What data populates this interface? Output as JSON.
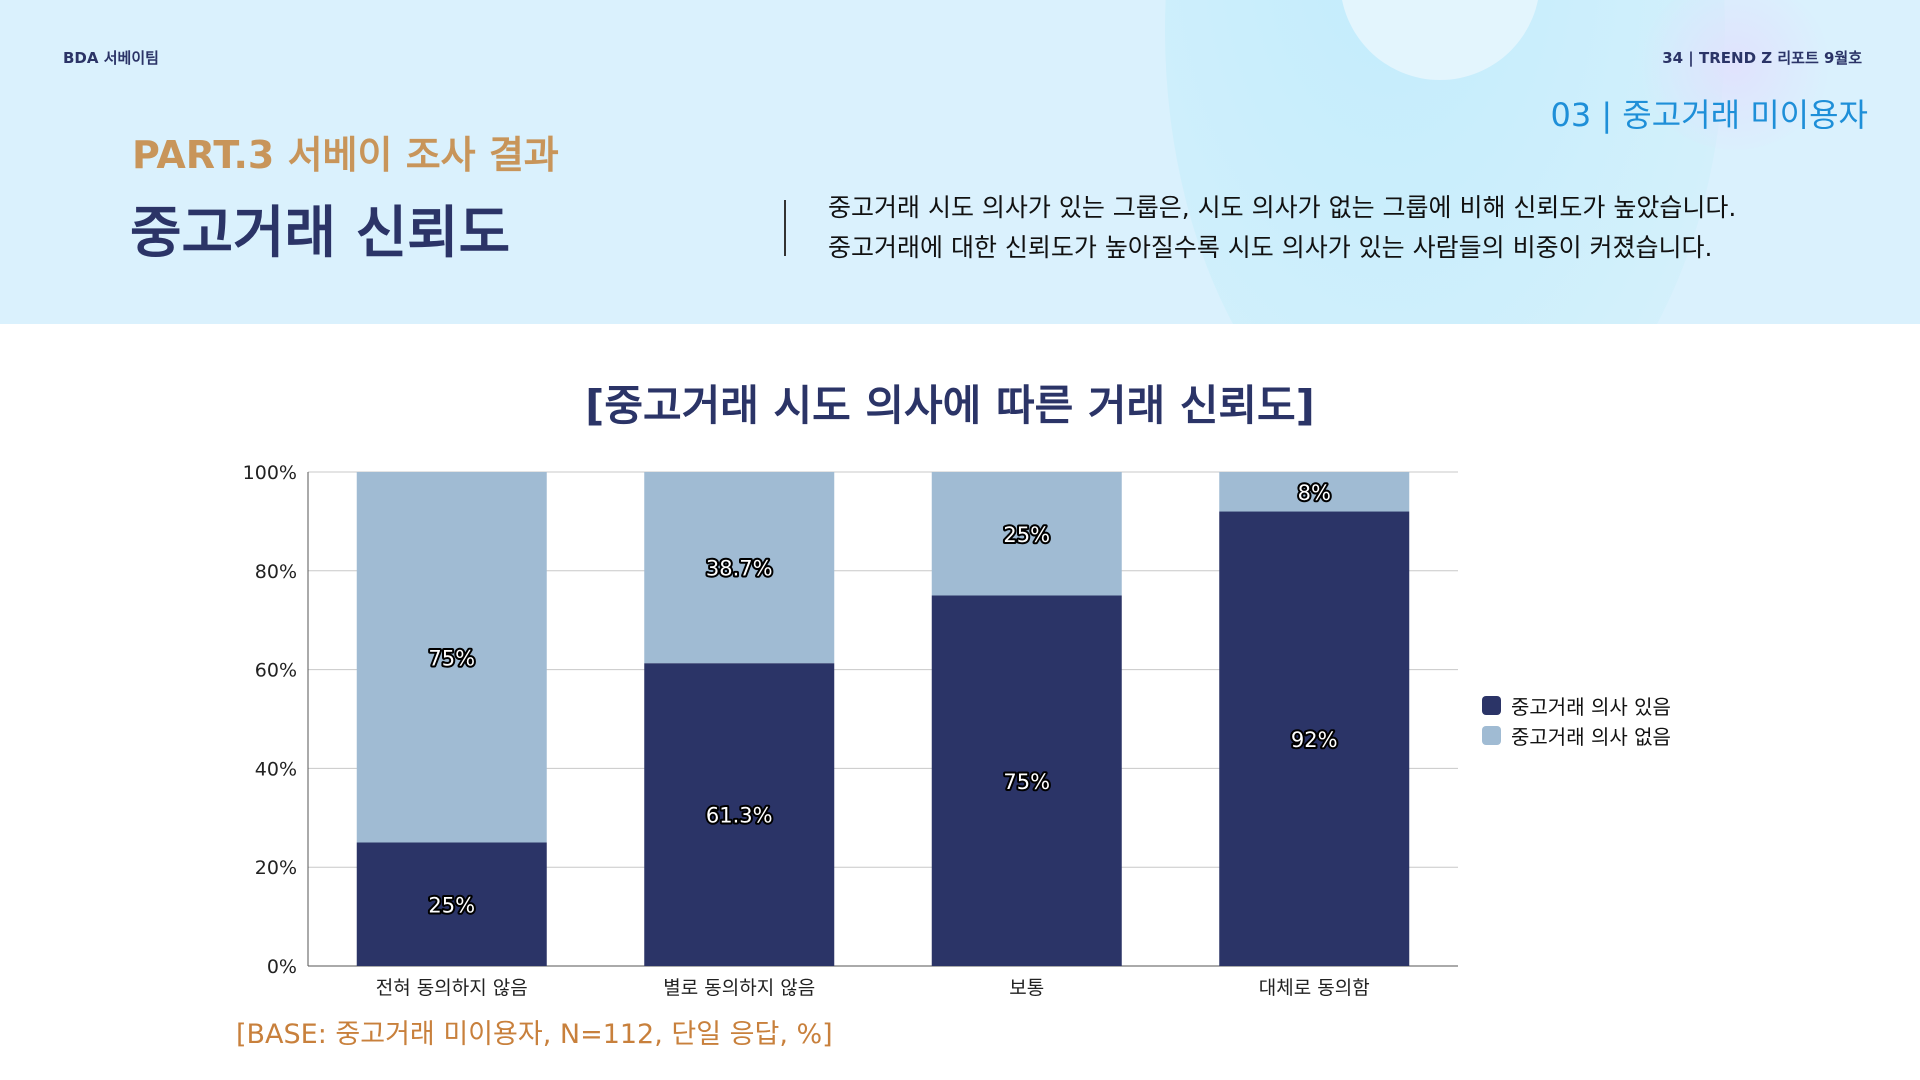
{
  "header": {
    "team": "BDA 서베이팀",
    "issue": "34 | TREND Z 리포트 9월호",
    "section": "03 | 중고거래 미이용자",
    "part": "PART.3 서베이 조사 결과",
    "title": "중고거래 신뢰도",
    "desc": [
      "중고거래 시도 의사가 있는 그룹은, 시도 의사가 없는 그룹에 비해 신뢰도가 높았습니다.",
      "중고거래에 대한 신뢰도가 높아질수록 시도 의사가 있는 사람들의 비중이 커졌습니다."
    ]
  },
  "chart_data": {
    "type": "bar",
    "stacked": true,
    "title": "[중고거래 시도 의사에 따른 거래 신뢰도]",
    "categories": [
      "전혀 동의하지 않음",
      "별로 동의하지 않음",
      "보통",
      "대체로 동의함"
    ],
    "series": [
      {
        "name": "중고거래 의사 있음",
        "values": [
          25,
          61.3,
          75,
          92
        ],
        "labels": [
          "25%",
          "61.3%",
          "75%",
          "92%"
        ],
        "color": "#2b3467"
      },
      {
        "name": "중고거래 의사 없음",
        "values": [
          75,
          38.7,
          25,
          8
        ],
        "labels": [
          "75%",
          "38.7%",
          "25%",
          "8%"
        ],
        "color": "#a0bbd3"
      }
    ],
    "ylim": [
      0,
      100
    ],
    "yticks": [
      "0%",
      "20%",
      "40%",
      "60%",
      "80%",
      "100%"
    ],
    "grid": true,
    "legend": "right",
    "note": "[BASE: 중고거래 미이용자, N=112, 단일 응답, %]"
  }
}
